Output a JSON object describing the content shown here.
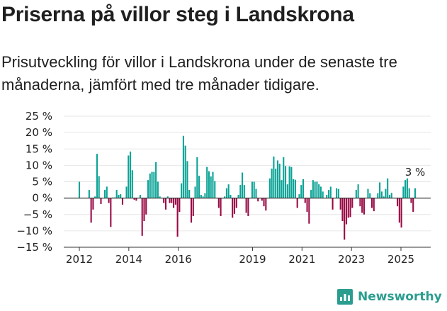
{
  "header": {
    "title": "Priserna på villor steg i Landskrona",
    "subtitle": "Prisutveckling för villor i Landskrona under de senaste tre månaderna, jämfört med tre månader tidigare."
  },
  "brand": {
    "name": "Newsworthy",
    "logo_icon": "newsworthy-logo-icon",
    "color": "#2a9d8f"
  },
  "colors": {
    "positive": "#0aa396",
    "negative": "#990a45",
    "axis": "#333333",
    "grid": "#e6e6e6"
  },
  "chart_data": {
    "type": "bar",
    "title": "",
    "xlabel": "",
    "ylabel": "",
    "ylim": [
      -15,
      25
    ],
    "yticks": [
      "25 %",
      "20 %",
      "15 %",
      "10 %",
      "5 %",
      "0 %",
      "−5 %",
      "−10 %",
      "−15 %"
    ],
    "ytick_values": [
      25,
      20,
      15,
      10,
      5,
      0,
      -5,
      -10,
      -15
    ],
    "xticks": [
      "2012",
      "2014",
      "2016",
      "2019",
      "2021",
      "2023",
      "2025"
    ],
    "xtick_values": [
      2012,
      2014,
      2016,
      2019,
      2021,
      2023,
      2025
    ],
    "x_start": 2012,
    "x_end": 2025.8,
    "grid": true,
    "annotation": {
      "text": "3 %",
      "value": 3
    },
    "values": [
      5,
      0,
      0,
      0,
      0,
      2.5,
      -7.5,
      -3.5,
      0.5,
      13.5,
      6.7,
      -1.8,
      0,
      2.5,
      3.5,
      -1.5,
      -8.8,
      0.2,
      0.2,
      2.5,
      1,
      1.2,
      -2,
      0,
      3.5,
      13,
      14.2,
      8.5,
      -0.5,
      -0.8,
      0,
      1,
      -11.5,
      -7,
      -5,
      5.5,
      7.5,
      8,
      8,
      11,
      5,
      0.5,
      0,
      -1.5,
      -3.5,
      0.5,
      -1.5,
      -1.5,
      -3,
      -2,
      -11.8,
      -4.2,
      4.5,
      19,
      16,
      11.3,
      2.5,
      -7.5,
      -5.5,
      3.5,
      12.5,
      6.8,
      1,
      0.5,
      1.5,
      9.5,
      8.2,
      6.6,
      8,
      5.2,
      0,
      -3,
      -5.5,
      0,
      0.5,
      3,
      4.2,
      1,
      -6,
      -4.8,
      -3,
      1,
      4,
      7.8,
      4,
      -4.5,
      -5.5,
      0,
      5,
      5,
      2.8,
      -1,
      0,
      -0.8,
      -2.5,
      -3.8,
      0,
      6,
      9,
      12.7,
      9,
      11.5,
      10.5,
      5.5,
      12.5,
      9.8,
      4.2,
      9.7,
      9.5,
      5.8,
      5.6,
      -3,
      1.2,
      4,
      5.8,
      -1.5,
      -4.2,
      -7.8,
      2.5,
      5.5,
      5,
      5,
      4.2,
      3.5,
      2,
      0,
      1,
      2.5,
      3.5,
      -3.5,
      0,
      3,
      2.8,
      -3.5,
      -7,
      -12.7,
      -8,
      -6,
      -5.8,
      -3,
      0,
      2.5,
      4.2,
      -2.5,
      -4.5,
      -5,
      0,
      2.8,
      1.5,
      -3,
      -4,
      0,
      1.5,
      4.8,
      2,
      0.5,
      2.8,
      6,
      1,
      1.6,
      0,
      0,
      -2.5,
      -7.5,
      -9,
      3.5,
      5.5,
      6,
      3,
      -1.5,
      -4.2,
      3
    ]
  }
}
